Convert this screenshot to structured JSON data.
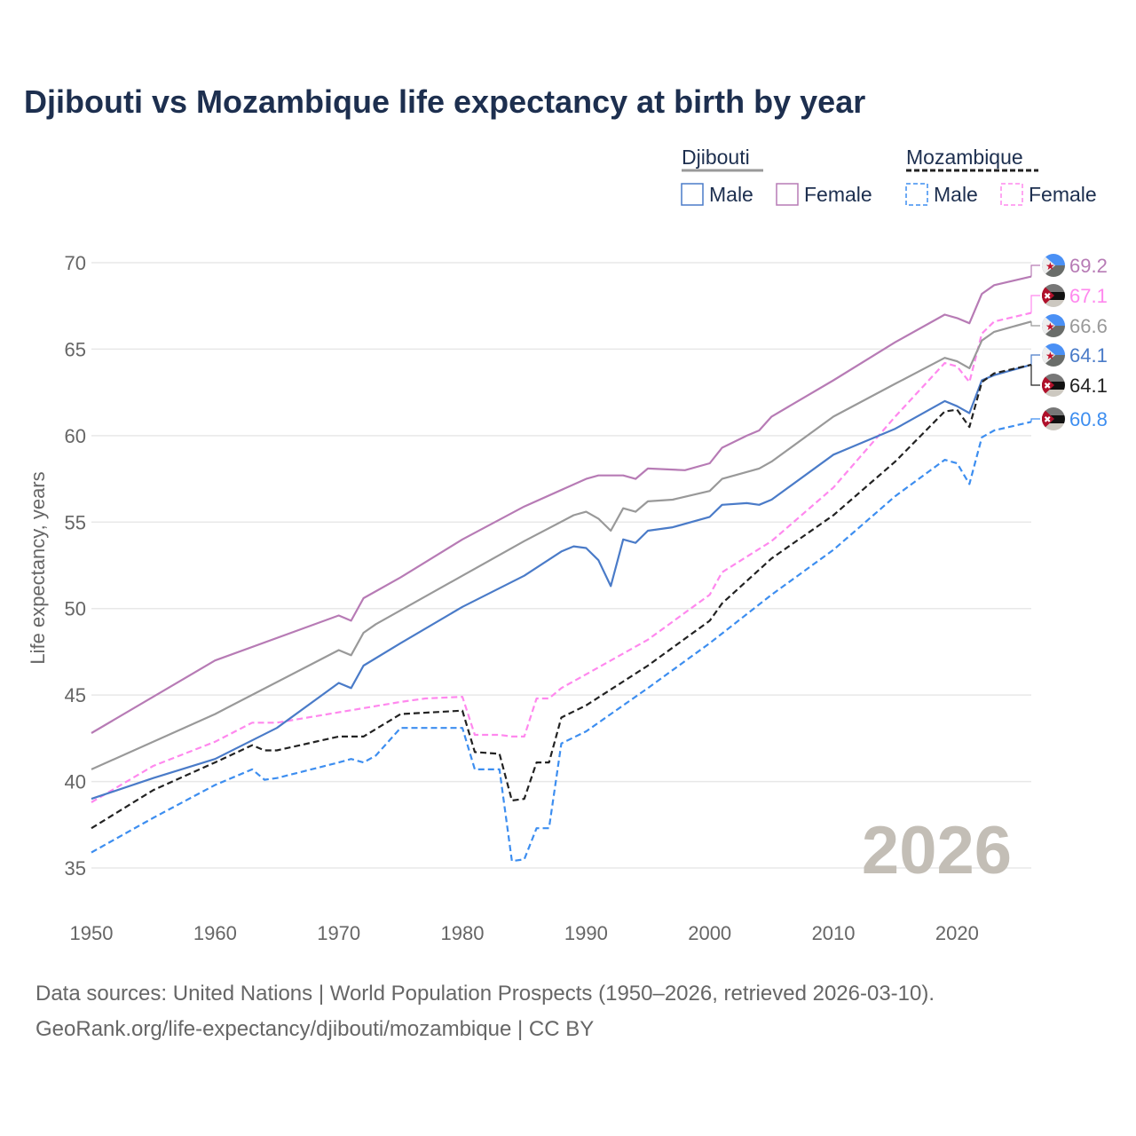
{
  "chart_data": {
    "type": "line",
    "title": "Djibouti vs Mozambique life expectancy at birth by year",
    "xlabel": "",
    "ylabel": "Life expectancy, years",
    "xlim": [
      1950,
      2026
    ],
    "ylim": [
      35,
      70
    ],
    "x_ticks": [
      "1950",
      "1960",
      "1970",
      "1980",
      "1990",
      "2000",
      "2010",
      "2020"
    ],
    "y_ticks": [
      "35",
      "40",
      "45",
      "50",
      "55",
      "60",
      "65",
      "70"
    ],
    "grid": true,
    "watermark_year": "2026",
    "legend": {
      "placement": "top-right",
      "groups": [
        {
          "name": "Djibouti",
          "style": "solid",
          "color": "#999999",
          "items": [
            "Male",
            "Female"
          ]
        },
        {
          "name": "Mozambique",
          "style": "dashed",
          "color": "#222222",
          "items": [
            "Male",
            "Female"
          ]
        }
      ]
    },
    "series": [
      {
        "name": "Djibouti Female",
        "country": "Djibouti",
        "color": "#b77bb5",
        "dashed": false,
        "end_label": "69.2",
        "flag": "djibouti",
        "x": [
          1950,
          1960,
          1970,
          1971,
          1972,
          1975,
          1980,
          1985,
          1990,
          1991,
          1993,
          1994,
          1995,
          1998,
          2000,
          2001,
          2003,
          2004,
          2005,
          2010,
          2015,
          2019,
          2020,
          2021,
          2022,
          2023,
          2026
        ],
        "y": [
          42.8,
          47.0,
          49.6,
          49.3,
          50.6,
          51.8,
          54.0,
          55.9,
          57.5,
          57.7,
          57.7,
          57.5,
          58.1,
          58.0,
          58.4,
          59.3,
          60.0,
          60.3,
          61.1,
          63.2,
          65.4,
          67.0,
          66.8,
          66.5,
          68.2,
          68.7,
          69.2
        ]
      },
      {
        "name": "Mozambique Female",
        "country": "Mozambique",
        "color": "#ff88ee",
        "dashed": true,
        "end_label": "67.1",
        "flag": "mozambique",
        "x": [
          1950,
          1955,
          1960,
          1963,
          1965,
          1970,
          1975,
          1977,
          1980,
          1981,
          1983,
          1984,
          1985,
          1986,
          1987,
          1988,
          1990,
          1995,
          2000,
          2001,
          2005,
          2010,
          2015,
          2019,
          2020,
          2021,
          2022,
          2023,
          2026
        ],
        "y": [
          38.8,
          40.9,
          42.3,
          43.4,
          43.4,
          44.0,
          44.6,
          44.8,
          44.9,
          42.7,
          42.7,
          42.6,
          42.6,
          44.8,
          44.8,
          45.4,
          46.2,
          48.2,
          50.8,
          52.1,
          53.9,
          57.0,
          61.1,
          64.2,
          64.0,
          63.1,
          65.9,
          66.6,
          67.1
        ]
      },
      {
        "name": "Djibouti Total",
        "country": "Djibouti",
        "color": "#999999",
        "dashed": false,
        "end_label": "66.6",
        "flag": "djibouti",
        "x": [
          1950,
          1960,
          1970,
          1971,
          1972,
          1973,
          1980,
          1985,
          1989,
          1990,
          1991,
          1992,
          1993,
          1994,
          1995,
          1997,
          2000,
          2001,
          2004,
          2005,
          2010,
          2015,
          2019,
          2020,
          2021,
          2022,
          2023,
          2026
        ],
        "y": [
          40.7,
          43.9,
          47.6,
          47.3,
          48.6,
          49.1,
          51.9,
          53.9,
          55.4,
          55.6,
          55.2,
          54.5,
          55.8,
          55.6,
          56.2,
          56.3,
          56.8,
          57.5,
          58.1,
          58.5,
          61.1,
          63.0,
          64.5,
          64.3,
          63.9,
          65.5,
          66.0,
          66.6
        ]
      },
      {
        "name": "Djibouti Male",
        "country": "Djibouti",
        "color": "#4a7bc8",
        "dashed": false,
        "end_label": "64.1",
        "flag": "djibouti",
        "x": [
          1950,
          1955,
          1960,
          1965,
          1970,
          1971,
          1972,
          1975,
          1980,
          1985,
          1988,
          1989,
          1990,
          1991,
          1992,
          1993,
          1994,
          1995,
          1997,
          2000,
          2001,
          2003,
          2004,
          2005,
          2010,
          2015,
          2019,
          2020,
          2021,
          2022,
          2023,
          2026
        ],
        "y": [
          39.0,
          40.2,
          41.3,
          43.1,
          45.7,
          45.4,
          46.7,
          48.0,
          50.1,
          51.9,
          53.3,
          53.6,
          53.5,
          52.8,
          51.3,
          54.0,
          53.8,
          54.5,
          54.7,
          55.3,
          56.0,
          56.1,
          56.0,
          56.3,
          58.9,
          60.4,
          62.0,
          61.7,
          61.3,
          63.2,
          63.5,
          64.1
        ]
      },
      {
        "name": "Mozambique Total",
        "country": "Mozambique",
        "color": "#222222",
        "dashed": true,
        "end_label": "64.1",
        "flag": "mozambique",
        "x": [
          1950,
          1955,
          1960,
          1963,
          1964,
          1965,
          1970,
          1972,
          1975,
          1980,
          1981,
          1983,
          1984,
          1985,
          1986,
          1987,
          1988,
          1990,
          1995,
          2000,
          2001,
          2005,
          2010,
          2015,
          2019,
          2020,
          2021,
          2022,
          2023,
          2026
        ],
        "y": [
          37.3,
          39.5,
          41.1,
          42.1,
          41.8,
          41.8,
          42.6,
          42.6,
          43.9,
          44.1,
          41.7,
          41.6,
          38.9,
          39.0,
          41.1,
          41.1,
          43.7,
          44.4,
          46.7,
          49.3,
          50.3,
          52.9,
          55.4,
          58.5,
          61.4,
          61.5,
          60.5,
          63.1,
          63.6,
          64.1
        ]
      },
      {
        "name": "Mozambique Male",
        "country": "Mozambique",
        "color": "#3d8ef0",
        "dashed": true,
        "end_label": "60.8",
        "flag": "mozambique",
        "x": [
          1950,
          1955,
          1960,
          1963,
          1964,
          1965,
          1970,
          1971,
          1972,
          1973,
          1975,
          1980,
          1981,
          1983,
          1984,
          1985,
          1986,
          1987,
          1988,
          1990,
          1995,
          2000,
          2005,
          2010,
          2015,
          2019,
          2020,
          2021,
          2022,
          2023,
          2026
        ],
        "y": [
          35.9,
          37.9,
          39.8,
          40.7,
          40.1,
          40.2,
          41.1,
          41.3,
          41.1,
          41.5,
          43.1,
          43.1,
          40.7,
          40.7,
          35.4,
          35.5,
          37.3,
          37.3,
          42.2,
          42.9,
          45.4,
          48.0,
          50.8,
          53.4,
          56.5,
          58.6,
          58.4,
          57.2,
          59.9,
          60.3,
          60.8
        ]
      }
    ]
  },
  "footer": {
    "line1": "Data sources: United Nations | World Population Prospects (1950–2026, retrieved 2026-03-10).",
    "line2": "GeoRank.org/life-expectancy/djibouti/mozambique | CC BY"
  }
}
